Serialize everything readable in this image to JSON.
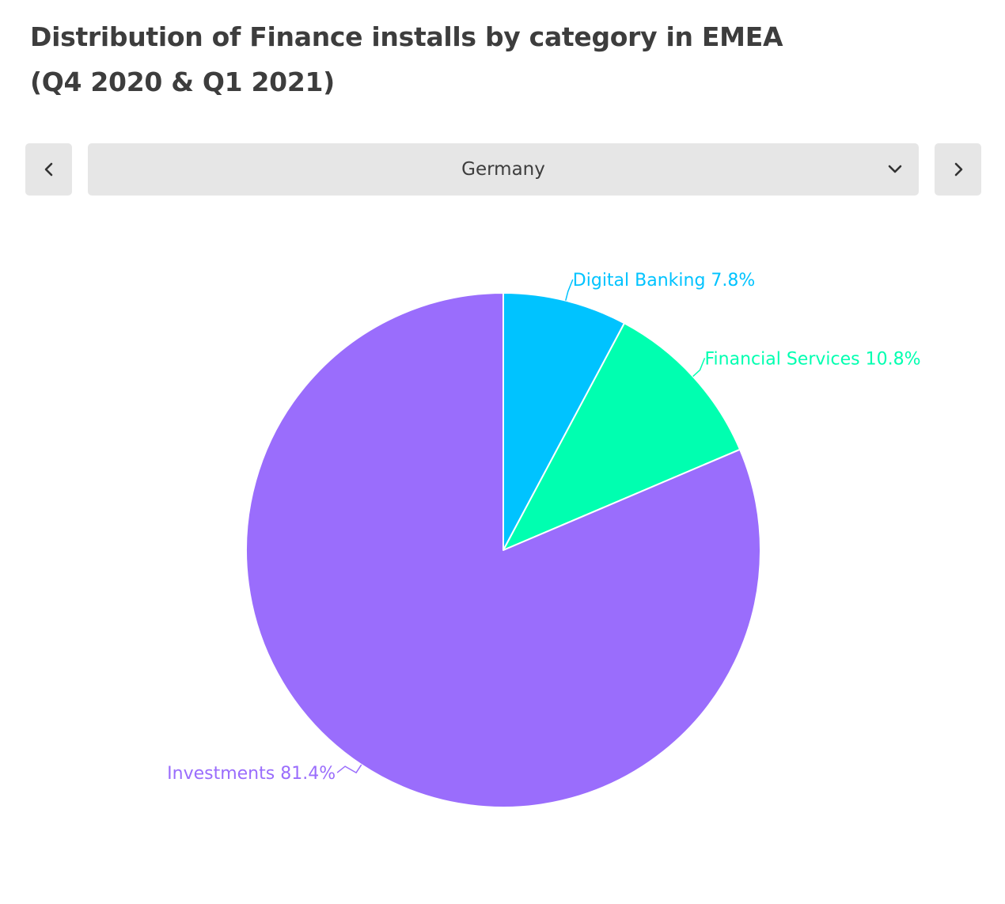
{
  "title": {
    "line1": "Distribution of Finance installs by category in EMEA",
    "line2": "(Q4 2020 & Q1 2021)"
  },
  "selector": {
    "selected": "Germany"
  },
  "chart_data": {
    "type": "pie",
    "slices": [
      {
        "name": "Digital Banking",
        "value": 7.8,
        "label": "Digital Banking 7.8%",
        "color": "#00c3ff"
      },
      {
        "name": "Financial Services",
        "value": 10.8,
        "label": "Financial Services 10.8%",
        "color": "#00ffb0"
      },
      {
        "name": "Investments",
        "value": 81.4,
        "label": "Investments 81.4%",
        "color": "#9a6dfc"
      }
    ],
    "start_angle": "12 o'clock",
    "direction": "clockwise",
    "legend": "none"
  }
}
